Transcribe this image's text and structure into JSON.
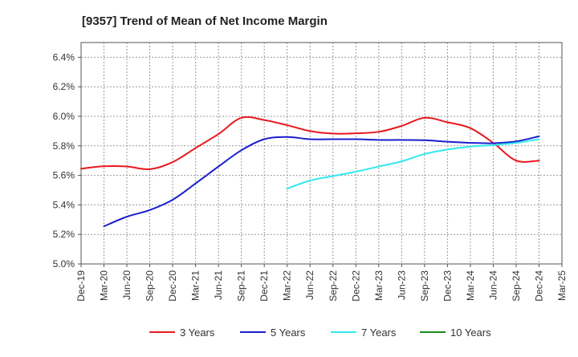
{
  "chart_data": {
    "type": "line",
    "title": "[9357]  Trend of Mean of Net Income Margin",
    "xlabel": "",
    "ylabel": "",
    "ylim": [
      5.0,
      6.5
    ],
    "y_ticks": [
      5.0,
      5.2,
      5.4,
      5.6,
      5.8,
      6.0,
      6.2,
      6.4
    ],
    "y_tick_labels": [
      "5.0%",
      "5.2%",
      "5.4%",
      "5.6%",
      "5.8%",
      "6.0%",
      "6.2%",
      "6.4%"
    ],
    "x_tick_labels": [
      "Dec-19",
      "Mar-20",
      "Jun-20",
      "Sep-20",
      "Dec-20",
      "Mar-21",
      "Jun-21",
      "Sep-21",
      "Dec-21",
      "Mar-22",
      "Jun-22",
      "Sep-22",
      "Dec-22",
      "Mar-23",
      "Jun-23",
      "Sep-23",
      "Dec-23",
      "Mar-24",
      "Jun-24",
      "Sep-24",
      "Dec-24",
      "Mar-25"
    ],
    "grid": true,
    "legend_position": "bottom",
    "series": [
      {
        "name": "3 Years",
        "color": "#e8191e",
        "points": [
          [
            0,
            5.645
          ],
          [
            1,
            5.662
          ],
          [
            2,
            5.66
          ],
          [
            3,
            5.642
          ],
          [
            4,
            5.69
          ],
          [
            5,
            5.785
          ],
          [
            6,
            5.88
          ],
          [
            7,
            5.99
          ],
          [
            8,
            5.975
          ],
          [
            9,
            5.94
          ],
          [
            10,
            5.9
          ],
          [
            11,
            5.883
          ],
          [
            12,
            5.885
          ],
          [
            13,
            5.895
          ],
          [
            14,
            5.935
          ],
          [
            15,
            5.99
          ],
          [
            16,
            5.96
          ],
          [
            17,
            5.92
          ],
          [
            18,
            5.82
          ],
          [
            19,
            5.7
          ],
          [
            20,
            5.7
          ]
        ]
      },
      {
        "name": "5 Years",
        "color": "#1a1fcc",
        "points": [
          [
            1,
            5.255
          ],
          [
            2,
            5.32
          ],
          [
            3,
            5.365
          ],
          [
            4,
            5.435
          ],
          [
            5,
            5.545
          ],
          [
            6,
            5.66
          ],
          [
            7,
            5.77
          ],
          [
            8,
            5.845
          ],
          [
            9,
            5.86
          ],
          [
            10,
            5.845
          ],
          [
            11,
            5.845
          ],
          [
            12,
            5.845
          ],
          [
            13,
            5.84
          ],
          [
            14,
            5.84
          ],
          [
            15,
            5.838
          ],
          [
            16,
            5.828
          ],
          [
            17,
            5.82
          ],
          [
            18,
            5.818
          ],
          [
            19,
            5.83
          ],
          [
            20,
            5.865
          ]
        ]
      },
      {
        "name": "7 Years",
        "color": "#33e8f0",
        "points": [
          [
            9,
            5.51
          ],
          [
            10,
            5.565
          ],
          [
            11,
            5.595
          ],
          [
            12,
            5.625
          ],
          [
            13,
            5.66
          ],
          [
            14,
            5.695
          ],
          [
            15,
            5.745
          ],
          [
            16,
            5.775
          ],
          [
            17,
            5.795
          ],
          [
            18,
            5.805
          ],
          [
            19,
            5.82
          ],
          [
            20,
            5.845
          ]
        ]
      },
      {
        "name": "10 Years",
        "color": "#1a8a1a",
        "points": []
      }
    ]
  }
}
